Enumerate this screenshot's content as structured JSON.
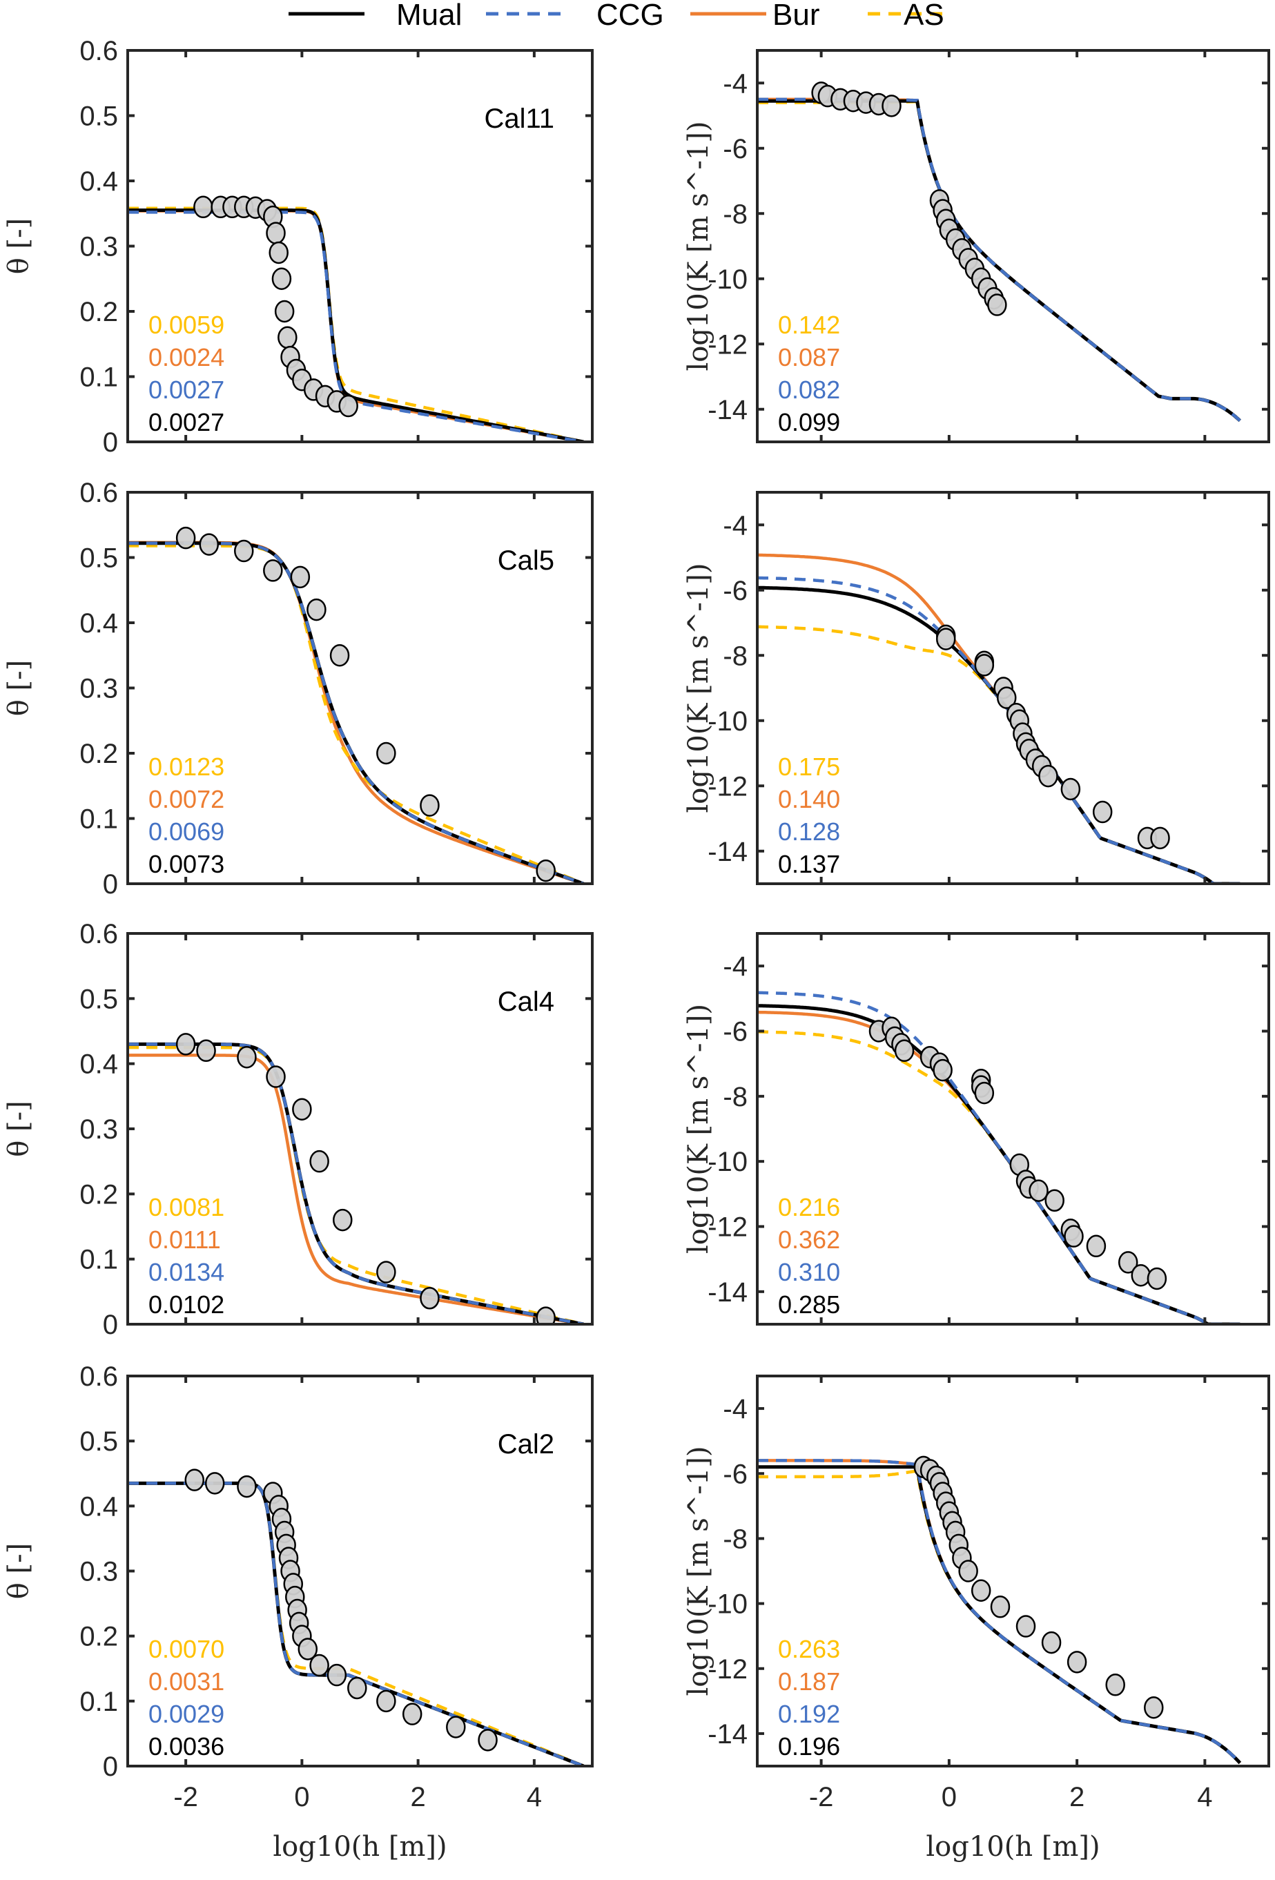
{
  "chart_data": {
    "type": "line",
    "layout": "4x2 grid of panels",
    "legend": {
      "placement": "top-center",
      "entries": [
        {
          "name": "Mual",
          "color": "#000000",
          "style": "solid"
        },
        {
          "name": "CCG",
          "color": "#4472C4",
          "style": "dashed"
        },
        {
          "name": "Bur",
          "color": "#ED7D31",
          "style": "solid"
        },
        {
          "name": "AS",
          "color": "#FFC000",
          "style": "dashed"
        }
      ]
    },
    "xlabel": "log10(h [m])",
    "xlim": [
      -3,
      5
    ],
    "xticks": [
      -2,
      0,
      2,
      4
    ],
    "theta_axis": {
      "ylabel": "θ [-]",
      "ylim": [
        0,
        0.6
      ],
      "yticks": [
        0,
        0.1,
        0.2,
        0.3,
        0.4,
        0.5,
        0.6
      ]
    },
    "k_axis": {
      "ylabel": "log10(K [m s^-1])",
      "ylim": [
        -15,
        -3
      ],
      "yticks": [
        -14,
        -12,
        -10,
        -8,
        -6,
        -4
      ]
    },
    "rows": [
      {
        "sample": "Cal11",
        "theta": {
          "metrics": {
            "AS": "0.0059",
            "Bur": "0.0024",
            "CCG": "0.0027",
            "Mual": "0.0027"
          },
          "observations": [
            [
              -1.7,
              0.36
            ],
            [
              -1.4,
              0.36
            ],
            [
              -1.2,
              0.36
            ],
            [
              -1.0,
              0.36
            ],
            [
              -0.8,
              0.359
            ],
            [
              -0.6,
              0.355
            ],
            [
              -0.5,
              0.345
            ],
            [
              -0.45,
              0.32
            ],
            [
              -0.4,
              0.29
            ],
            [
              -0.35,
              0.25
            ],
            [
              -0.3,
              0.2
            ],
            [
              -0.25,
              0.16
            ],
            [
              -0.2,
              0.13
            ],
            [
              -0.1,
              0.11
            ],
            [
              0,
              0.095
            ],
            [
              0.2,
              0.08
            ],
            [
              0.4,
              0.07
            ],
            [
              0.6,
              0.062
            ],
            [
              0.8,
              0.055
            ]
          ],
          "series": {
            "Mual": {
              "r": 0.0,
              "s": 0.355,
              "a": 0.35,
              "n": 6.5,
              "tail": 0.068
            },
            "CCG": {
              "r": 0.0,
              "s": 0.352,
              "a": 0.35,
              "n": 6.5,
              "tail": 0.062
            },
            "Bur": {
              "r": 0.0,
              "s": 0.354,
              "a": 0.35,
              "n": 6.5,
              "tail": 0.064
            },
            "AS": {
              "r": 0.0,
              "s": 0.358,
              "a": 0.35,
              "n": 6.5,
              "tail": 0.078
            }
          }
        },
        "k": {
          "metrics": {
            "AS": "0.142",
            "Bur": "0.087",
            "CCG": "0.082",
            "Mual": "0.099"
          },
          "observations": [
            [
              -2.0,
              -4.3
            ],
            [
              -1.9,
              -4.4
            ],
            [
              -1.7,
              -4.5
            ],
            [
              -1.5,
              -4.55
            ],
            [
              -1.3,
              -4.6
            ],
            [
              -1.1,
              -4.65
            ],
            [
              -0.9,
              -4.7
            ],
            [
              -0.15,
              -7.6
            ],
            [
              -0.1,
              -7.9
            ],
            [
              -0.05,
              -8.2
            ],
            [
              0.0,
              -8.5
            ],
            [
              0.1,
              -8.8
            ],
            [
              0.2,
              -9.1
            ],
            [
              0.3,
              -9.4
            ],
            [
              0.4,
              -9.7
            ],
            [
              0.5,
              -10.0
            ],
            [
              0.6,
              -10.3
            ],
            [
              0.7,
              -10.6
            ],
            [
              0.75,
              -10.8
            ]
          ],
          "series": {
            "Mual": {
              "ks": -4.55,
              "h0": -0.45
            },
            "CCG": {
              "ks": -4.5,
              "h0": -0.45
            },
            "Bur": {
              "ks": -4.5,
              "h0": -0.45
            },
            "AS": {
              "ks": -4.6,
              "h0": -0.45
            }
          }
        }
      },
      {
        "sample": "Cal5",
        "theta": {
          "metrics": {
            "AS": "0.0123",
            "Bur": "0.0072",
            "CCG": "0.0069",
            "Mual": "0.0073"
          },
          "observations": [
            [
              -2.0,
              0.53
            ],
            [
              -1.6,
              0.52
            ],
            [
              -1.0,
              0.51
            ],
            [
              -0.5,
              0.48
            ],
            [
              -0.03,
              0.47
            ],
            [
              0.25,
              0.42
            ],
            [
              0.65,
              0.35
            ],
            [
              1.45,
              0.2
            ],
            [
              2.2,
              0.12
            ],
            [
              4.2,
              0.02
            ]
          ],
          "series": {
            "Mual": {
              "s": 0.522,
              "a": 0.9,
              "n": 1.9,
              "tail": 0.13
            },
            "CCG": {
              "s": 0.522,
              "a": 0.9,
              "n": 1.9,
              "tail": 0.13
            },
            "Bur": {
              "s": 0.523,
              "a": 0.9,
              "n": 1.95,
              "tail": 0.12
            },
            "AS": {
              "s": 0.518,
              "a": 0.9,
              "n": 2.2,
              "tail": 0.15
            }
          }
        },
        "k": {
          "metrics": {
            "AS": "0.175",
            "Bur": "0.140",
            "CCG": "0.128",
            "Mual": "0.137"
          },
          "observations": [
            [
              -0.05,
              -7.4
            ],
            [
              -0.05,
              -7.5
            ],
            [
              0.55,
              -8.2
            ],
            [
              0.55,
              -8.3
            ],
            [
              0.85,
              -9.0
            ],
            [
              0.9,
              -9.3
            ],
            [
              1.05,
              -9.8
            ],
            [
              1.1,
              -10.0
            ],
            [
              1.15,
              -10.4
            ],
            [
              1.2,
              -10.7
            ],
            [
              1.25,
              -10.9
            ],
            [
              1.35,
              -11.2
            ],
            [
              1.45,
              -11.4
            ],
            [
              1.55,
              -11.7
            ],
            [
              1.9,
              -12.1
            ],
            [
              2.4,
              -12.8
            ],
            [
              3.1,
              -13.6
            ],
            [
              3.3,
              -13.6
            ]
          ],
          "series": {
            "Mual": {
              "ks": -5.9
            },
            "CCG": {
              "ks": -5.6
            },
            "Bur": {
              "ks": -4.9
            },
            "AS": {
              "ks": -7.1
            }
          }
        }
      },
      {
        "sample": "Cal4",
        "theta": {
          "metrics": {
            "AS": "0.0081",
            "Bur": "0.0111",
            "CCG": "0.0134",
            "Mual": "0.0102"
          },
          "observations": [
            [
              -2.0,
              0.43
            ],
            [
              -1.65,
              0.42
            ],
            [
              -0.95,
              0.41
            ],
            [
              -0.45,
              0.38
            ],
            [
              0.0,
              0.33
            ],
            [
              0.3,
              0.25
            ],
            [
              0.7,
              0.16
            ],
            [
              1.45,
              0.08
            ],
            [
              2.2,
              0.04
            ],
            [
              4.2,
              0.01
            ]
          ],
          "series": {
            "Mual": {
              "s": 0.43,
              "a": 1.6,
              "n": 2.6,
              "tail": 0.07
            },
            "CCG": {
              "s": 0.43,
              "a": 1.6,
              "n": 2.6,
              "tail": 0.07
            },
            "Bur": {
              "s": 0.413,
              "a": 1.8,
              "n": 3.0,
              "tail": 0.06
            },
            "AS": {
              "s": 0.425,
              "a": 1.6,
              "n": 2.8,
              "tail": 0.085
            }
          }
        },
        "k": {
          "metrics": {
            "AS": "0.216",
            "Bur": "0.362",
            "CCG": "0.310",
            "Mual": "0.285"
          },
          "observations": [
            [
              -1.1,
              -6.0
            ],
            [
              -0.9,
              -5.9
            ],
            [
              -0.85,
              -6.2
            ],
            [
              -0.75,
              -6.4
            ],
            [
              -0.7,
              -6.6
            ],
            [
              -0.3,
              -6.8
            ],
            [
              -0.15,
              -7.0
            ],
            [
              -0.1,
              -7.2
            ],
            [
              0.5,
              -7.5
            ],
            [
              0.5,
              -7.7
            ],
            [
              0.55,
              -7.9
            ],
            [
              1.1,
              -10.1
            ],
            [
              1.2,
              -10.6
            ],
            [
              1.25,
              -10.8
            ],
            [
              1.4,
              -10.9
            ],
            [
              1.65,
              -11.2
            ],
            [
              1.9,
              -12.1
            ],
            [
              1.95,
              -12.3
            ],
            [
              2.3,
              -12.6
            ],
            [
              2.8,
              -13.1
            ],
            [
              3.0,
              -13.5
            ],
            [
              3.25,
              -13.6
            ]
          ],
          "series": {
            "Mual": {
              "ks": -5.2
            },
            "CCG": {
              "ks": -4.8
            },
            "Bur": {
              "ks": -5.4
            },
            "AS": {
              "ks": -6.0
            }
          }
        }
      },
      {
        "sample": "Cal2",
        "theta": {
          "metrics": {
            "AS": "0.0070",
            "Bur": "0.0031",
            "CCG": "0.0029",
            "Mual": "0.0036"
          },
          "observations": [
            [
              -1.85,
              0.44
            ],
            [
              -1.5,
              0.435
            ],
            [
              -0.95,
              0.43
            ],
            [
              -0.5,
              0.42
            ],
            [
              -0.4,
              0.4
            ],
            [
              -0.35,
              0.38
            ],
            [
              -0.3,
              0.36
            ],
            [
              -0.27,
              0.34
            ],
            [
              -0.23,
              0.32
            ],
            [
              -0.2,
              0.3
            ],
            [
              -0.15,
              0.28
            ],
            [
              -0.12,
              0.26
            ],
            [
              -0.08,
              0.24
            ],
            [
              -0.05,
              0.22
            ],
            [
              0.0,
              0.2
            ],
            [
              0.1,
              0.18
            ],
            [
              0.3,
              0.155
            ],
            [
              0.6,
              0.14
            ],
            [
              0.95,
              0.12
            ],
            [
              1.45,
              0.1
            ],
            [
              1.9,
              0.08
            ],
            [
              2.65,
              0.06
            ],
            [
              3.2,
              0.04
            ]
          ],
          "series": {
            "Mual": {
              "s": 0.435,
              "a": 3.0,
              "n": 6.0,
              "tail": 0.14
            },
            "CCG": {
              "s": 0.435,
              "a": 3.0,
              "n": 6.0,
              "tail": 0.14
            },
            "Bur": {
              "s": 0.435,
              "a": 3.0,
              "n": 6.0,
              "tail": 0.14
            },
            "AS": {
              "s": 0.435,
              "a": 3.0,
              "n": 6.0,
              "tail": 0.15
            }
          }
        },
        "k": {
          "metrics": {
            "AS": "0.263",
            "Bur": "0.187",
            "CCG": "0.192",
            "Mual": "0.196"
          },
          "observations": [
            [
              -0.4,
              -5.8
            ],
            [
              -0.3,
              -5.9
            ],
            [
              -0.2,
              -6.1
            ],
            [
              -0.15,
              -6.3
            ],
            [
              -0.1,
              -6.6
            ],
            [
              -0.05,
              -6.9
            ],
            [
              0.0,
              -7.2
            ],
            [
              0.05,
              -7.5
            ],
            [
              0.1,
              -7.8
            ],
            [
              0.15,
              -8.2
            ],
            [
              0.2,
              -8.6
            ],
            [
              0.3,
              -9.0
            ],
            [
              0.5,
              -9.6
            ],
            [
              0.8,
              -10.1
            ],
            [
              1.2,
              -10.7
            ],
            [
              1.6,
              -11.2
            ],
            [
              2.0,
              -11.8
            ],
            [
              2.6,
              -12.5
            ],
            [
              3.2,
              -13.2
            ]
          ],
          "series": {
            "Mual": {
              "ks": -5.8
            },
            "CCG": {
              "ks": -5.6
            },
            "Bur": {
              "ks": -5.6
            },
            "AS": {
              "ks": -6.1
            }
          }
        }
      }
    ]
  }
}
